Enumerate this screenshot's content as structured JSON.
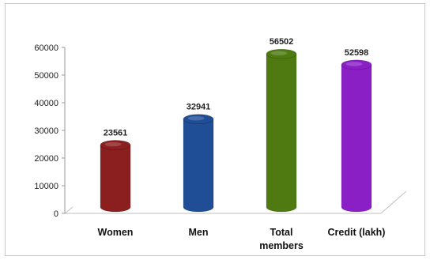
{
  "chart_data": {
    "type": "bar",
    "style": "3d-cylinder",
    "categories": [
      "Women",
      "Men",
      "Total members",
      "Credit (lakh)"
    ],
    "category_lines": [
      [
        "Women"
      ],
      [
        "Men"
      ],
      [
        "Total",
        "members"
      ],
      [
        "Credit (lakh)"
      ]
    ],
    "values": [
      23561,
      32941,
      56502,
      52598
    ],
    "data_labels": [
      "23561",
      "32941",
      "56502",
      "52598"
    ],
    "ylim": [
      0,
      60000
    ],
    "yticks": [
      0,
      10000,
      20000,
      30000,
      40000,
      50000,
      60000
    ],
    "ytick_labels": [
      "0",
      "10000",
      "20000",
      "30000",
      "40000",
      "50000",
      "60000"
    ],
    "grid": false,
    "legend": "none",
    "title": "",
    "xlabel": "",
    "ylabel": "",
    "colors": [
      "#8b1e1e",
      "#1f4e96",
      "#4f7a12",
      "#8a1fc6"
    ]
  }
}
